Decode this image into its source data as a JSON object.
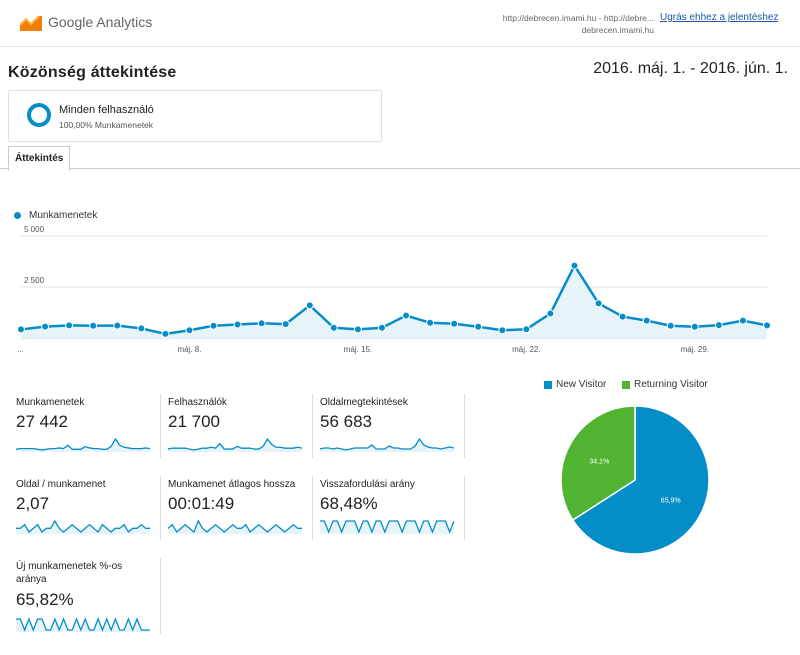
{
  "header": {
    "app_name": "Google Analytics",
    "url_line1": "http://debrecen.imami.hu - http://debre...",
    "url_line2": "debrecen.imami.hu",
    "goto_link": "Ugrás ehhez a jelentéshez"
  },
  "page": {
    "title": "Közönség áttekintése",
    "date_range": "2016. máj. 1. - 2016. jún. 1."
  },
  "segment": {
    "name": "Minden felhasználó",
    "subtitle": "100,00% Munkamenetek"
  },
  "tabs": [
    {
      "label": "Áttekintés"
    }
  ],
  "colors": {
    "accent": "#058dc7",
    "green": "#50b432",
    "area": "#e6f4fa"
  },
  "chart_data": [
    {
      "type": "area",
      "series": [
        {
          "name": "Munkamenetek",
          "values": [
            420,
            560,
            620,
            600,
            610,
            470,
            200,
            380,
            600,
            660,
            720,
            680,
            1600,
            500,
            420,
            500,
            1100,
            750,
            700,
            550,
            380,
            430,
            1200,
            3550,
            1700,
            1050,
            850,
            600,
            550,
            630,
            850,
            620
          ]
        }
      ],
      "yticks": [
        "5 000",
        "2 500"
      ],
      "ylim": [
        0,
        5000
      ],
      "xtick_labels": [
        {
          "index": 0,
          "label": "..."
        },
        {
          "index": 7,
          "label": "máj. 8."
        },
        {
          "index": 14,
          "label": "máj. 15."
        },
        {
          "index": 21,
          "label": "máj. 22."
        },
        {
          "index": 28,
          "label": "máj. 29."
        }
      ],
      "grid": true
    },
    {
      "type": "pie",
      "slices": [
        {
          "name": "New Visitor",
          "value": 65.9,
          "label": "65,9%",
          "color": "#058dc7"
        },
        {
          "name": "Returning Visitor",
          "value": 34.1,
          "label": "34,1%",
          "color": "#50b432"
        }
      ],
      "legend": "top"
    }
  ],
  "metrics": [
    {
      "label": "Munkamenetek",
      "value": "27 442",
      "spark": [
        3,
        4,
        4,
        4,
        4,
        3,
        2,
        3,
        4,
        4,
        5,
        4,
        9,
        3,
        3,
        3,
        7,
        5,
        4,
        4,
        3,
        3,
        7,
        18,
        9,
        6,
        5,
        4,
        4,
        4,
        5,
        4
      ]
    },
    {
      "label": "Felhasználók",
      "value": "21 700",
      "spark": [
        3,
        4,
        4,
        4,
        4,
        3,
        2,
        3,
        4,
        4,
        5,
        4,
        9,
        3,
        3,
        3,
        6,
        4,
        4,
        4,
        3,
        3,
        6,
        14,
        8,
        5,
        5,
        4,
        4,
        4,
        5,
        4
      ]
    },
    {
      "label": "Oldalmegtekintések",
      "value": "56 683",
      "spark": [
        3,
        4,
        4,
        3,
        4,
        3,
        2,
        3,
        4,
        4,
        4,
        4,
        7,
        3,
        3,
        3,
        6,
        4,
        4,
        3,
        3,
        3,
        6,
        13,
        7,
        5,
        4,
        4,
        3,
        4,
        5,
        4
      ]
    },
    {
      "label": "Oldal / munkamenet",
      "value": "2,07",
      "spark": [
        5,
        5,
        6,
        4,
        5,
        6,
        4,
        5,
        5,
        7,
        5,
        4,
        5,
        6,
        5,
        4,
        5,
        6,
        5,
        4,
        6,
        5,
        4,
        5,
        5,
        6,
        4,
        5,
        5,
        6,
        5,
        5
      ]
    },
    {
      "label": "Munkamenet átlagos hossza",
      "value": "00:01:49",
      "spark": [
        5,
        6,
        4,
        5,
        6,
        5,
        4,
        7,
        5,
        4,
        5,
        6,
        5,
        4,
        5,
        6,
        5,
        5,
        6,
        4,
        5,
        6,
        5,
        4,
        5,
        6,
        5,
        4,
        5,
        6,
        5,
        5
      ]
    },
    {
      "label": "Visszafordulási arány",
      "value": "68,48%",
      "spark": [
        6,
        6,
        5,
        6,
        6,
        5,
        6,
        6,
        6,
        5,
        6,
        6,
        5,
        6,
        6,
        5,
        6,
        6,
        6,
        5,
        6,
        6,
        6,
        5,
        6,
        6,
        5,
        6,
        6,
        6,
        5,
        6
      ]
    },
    {
      "label": "Új munkamenetek %-os aránya",
      "value": "65,82%",
      "spark": [
        6,
        6,
        5,
        6,
        5,
        6,
        6,
        5,
        5,
        6,
        5,
        6,
        5,
        5,
        6,
        5,
        6,
        5,
        5,
        6,
        5,
        6,
        5,
        6,
        5,
        5,
        6,
        5,
        6,
        5,
        5,
        5
      ]
    }
  ]
}
